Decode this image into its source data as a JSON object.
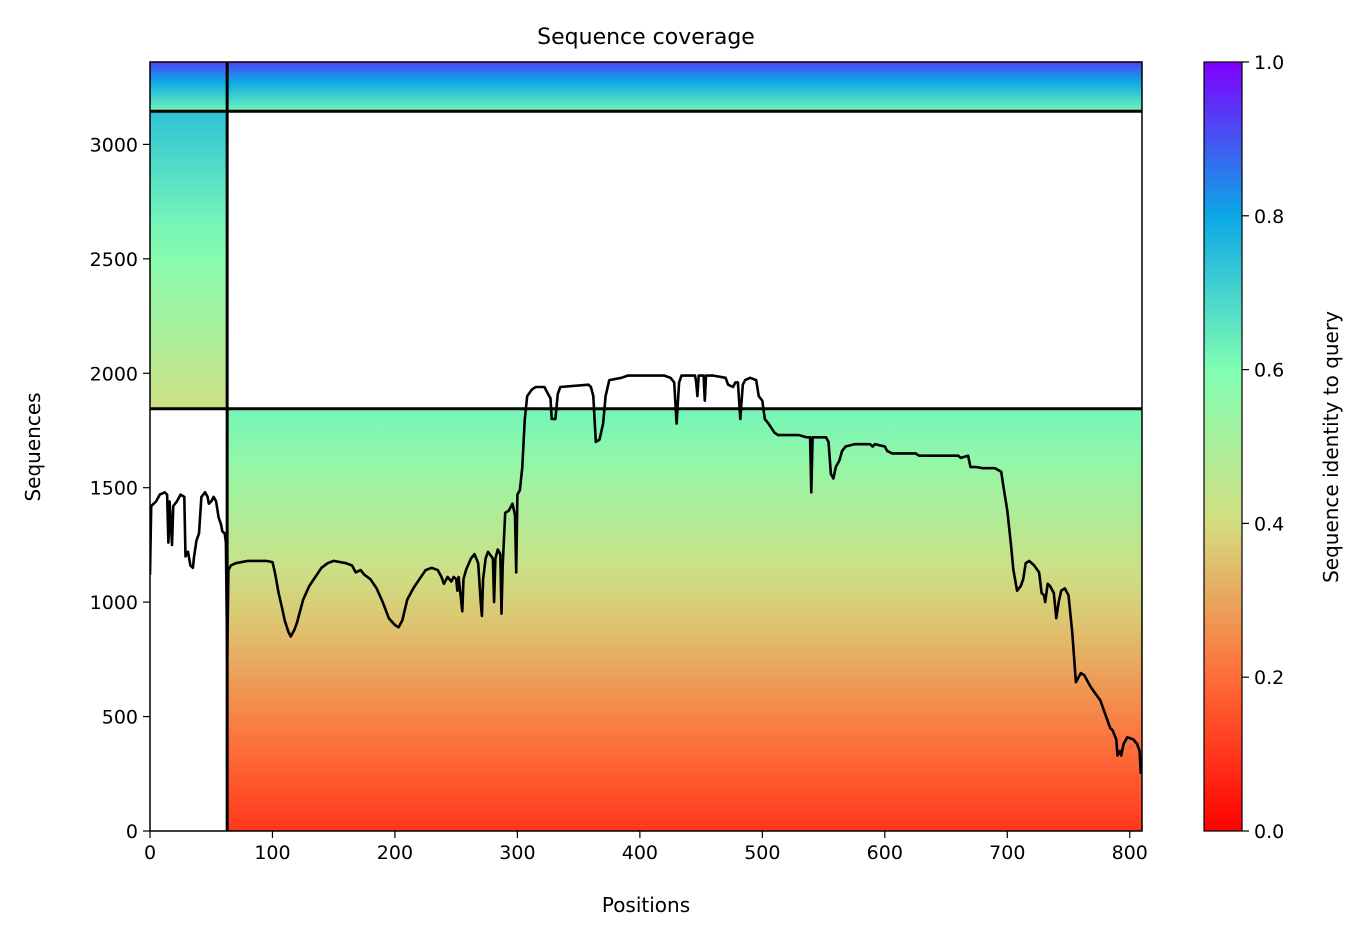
{
  "chart_data": {
    "type": "heatmap",
    "title": "Sequence coverage",
    "xlabel": "Positions",
    "ylabel": "Sequences",
    "xlim": [
      0,
      810
    ],
    "ylim": [
      0,
      3360
    ],
    "xticks": [
      0,
      100,
      200,
      300,
      400,
      500,
      600,
      700,
      800
    ],
    "yticks": [
      0,
      500,
      1000,
      1500,
      2000,
      2500,
      3000
    ],
    "grid": false,
    "legend": "none",
    "colorbar": {
      "label": "Sequence identity to query",
      "colormap": "rainbow_r",
      "range": [
        0,
        1
      ],
      "ticks": [
        0.0,
        0.2,
        0.4,
        0.6,
        0.8,
        1.0
      ],
      "tick_labels": [
        "0.0",
        "0.2",
        "0.4",
        "0.6",
        "0.8",
        "1.0"
      ],
      "stops": [
        "#ff0000",
        "#ff6d39",
        "#d4dd80",
        "#80feb3",
        "#0ba8e6",
        "#8000ff"
      ]
    },
    "domain_boundaries": {
      "vertical_positions": [
        63
      ],
      "horizontal_sequences": [
        1845,
        3145
      ]
    },
    "blocks": [
      {
        "x": [
          0,
          63
        ],
        "y": [
          1845,
          3145
        ],
        "identity_bottom": 0.42,
        "identity_top": 0.74
      },
      {
        "x": [
          63,
          810
        ],
        "y": [
          3145,
          3360
        ],
        "identity_bottom": 0.62,
        "identity_top": 0.92
      },
      {
        "x": [
          0,
          63
        ],
        "y": [
          3145,
          3360
        ],
        "identity_bottom": 0.62,
        "identity_top": 0.92
      },
      {
        "x": [
          63,
          810
        ],
        "y": [
          0,
          1845
        ],
        "identity_bottom": 0.1,
        "identity_top": 0.62
      }
    ],
    "coverage_line": {
      "name": "coverage",
      "color": "#000000",
      "points": [
        [
          0,
          1120
        ],
        [
          1,
          1420
        ],
        [
          5,
          1440
        ],
        [
          8,
          1470
        ],
        [
          12,
          1480
        ],
        [
          14,
          1470
        ],
        [
          15,
          1260
        ],
        [
          16,
          1440
        ],
        [
          18,
          1250
        ],
        [
          19,
          1420
        ],
        [
          22,
          1440
        ],
        [
          25,
          1470
        ],
        [
          28,
          1460
        ],
        [
          29,
          1200
        ],
        [
          31,
          1220
        ],
        [
          33,
          1160
        ],
        [
          35,
          1150
        ],
        [
          36,
          1200
        ],
        [
          38,
          1270
        ],
        [
          40,
          1300
        ],
        [
          42,
          1460
        ],
        [
          45,
          1480
        ],
        [
          47,
          1460
        ],
        [
          48,
          1430
        ],
        [
          50,
          1440
        ],
        [
          52,
          1460
        ],
        [
          54,
          1440
        ],
        [
          56,
          1370
        ],
        [
          58,
          1340
        ],
        [
          59,
          1310
        ],
        [
          61,
          1300
        ],
        [
          62,
          1260
        ],
        [
          63,
          750
        ],
        [
          64,
          1140
        ],
        [
          66,
          1160
        ],
        [
          70,
          1170
        ],
        [
          80,
          1180
        ],
        [
          95,
          1180
        ],
        [
          100,
          1175
        ],
        [
          102,
          1130
        ],
        [
          105,
          1040
        ],
        [
          108,
          970
        ],
        [
          110,
          920
        ],
        [
          113,
          870
        ],
        [
          115,
          850
        ],
        [
          118,
          880
        ],
        [
          120,
          910
        ],
        [
          125,
          1010
        ],
        [
          130,
          1070
        ],
        [
          135,
          1110
        ],
        [
          140,
          1150
        ],
        [
          145,
          1170
        ],
        [
          150,
          1180
        ],
        [
          160,
          1170
        ],
        [
          165,
          1160
        ],
        [
          168,
          1130
        ],
        [
          172,
          1140
        ],
        [
          175,
          1120
        ],
        [
          180,
          1100
        ],
        [
          185,
          1060
        ],
        [
          190,
          1000
        ],
        [
          195,
          930
        ],
        [
          200,
          900
        ],
        [
          203,
          890
        ],
        [
          206,
          920
        ],
        [
          210,
          1010
        ],
        [
          215,
          1060
        ],
        [
          220,
          1100
        ],
        [
          225,
          1140
        ],
        [
          230,
          1150
        ],
        [
          235,
          1140
        ],
        [
          238,
          1110
        ],
        [
          240,
          1080
        ],
        [
          243,
          1110
        ],
        [
          246,
          1090
        ],
        [
          248,
          1110
        ],
        [
          250,
          1100
        ],
        [
          251,
          1050
        ],
        [
          252,
          1110
        ],
        [
          255,
          960
        ],
        [
          256,
          1100
        ],
        [
          258,
          1140
        ],
        [
          262,
          1190
        ],
        [
          265,
          1210
        ],
        [
          268,
          1170
        ],
        [
          270,
          1000
        ],
        [
          271,
          940
        ],
        [
          272,
          1100
        ],
        [
          274,
          1190
        ],
        [
          276,
          1220
        ],
        [
          280,
          1190
        ],
        [
          281,
          1000
        ],
        [
          282,
          1190
        ],
        [
          284,
          1230
        ],
        [
          286,
          1210
        ],
        [
          287,
          950
        ],
        [
          288,
          1160
        ],
        [
          290,
          1390
        ],
        [
          293,
          1400
        ],
        [
          296,
          1430
        ],
        [
          298,
          1380
        ],
        [
          299,
          1130
        ],
        [
          300,
          1470
        ],
        [
          302,
          1490
        ],
        [
          304,
          1590
        ],
        [
          306,
          1800
        ],
        [
          308,
          1900
        ],
        [
          312,
          1930
        ],
        [
          315,
          1940
        ],
        [
          322,
          1940
        ],
        [
          325,
          1910
        ],
        [
          327,
          1890
        ],
        [
          328,
          1800
        ],
        [
          331,
          1800
        ],
        [
          333,
          1910
        ],
        [
          335,
          1940
        ],
        [
          358,
          1950
        ],
        [
          360,
          1940
        ],
        [
          362,
          1900
        ],
        [
          364,
          1700
        ],
        [
          367,
          1710
        ],
        [
          370,
          1780
        ],
        [
          372,
          1900
        ],
        [
          375,
          1970
        ],
        [
          385,
          1980
        ],
        [
          390,
          1990
        ],
        [
          420,
          1990
        ],
        [
          425,
          1980
        ],
        [
          428,
          1960
        ],
        [
          430,
          1780
        ],
        [
          432,
          1960
        ],
        [
          434,
          1990
        ],
        [
          445,
          1990
        ],
        [
          446,
          1960
        ],
        [
          447,
          1900
        ],
        [
          448,
          1990
        ],
        [
          452,
          1990
        ],
        [
          453,
          1880
        ],
        [
          454,
          1990
        ],
        [
          460,
          1990
        ],
        [
          470,
          1980
        ],
        [
          472,
          1950
        ],
        [
          476,
          1940
        ],
        [
          478,
          1960
        ],
        [
          480,
          1960
        ],
        [
          482,
          1800
        ],
        [
          484,
          1950
        ],
        [
          486,
          1970
        ],
        [
          490,
          1980
        ],
        [
          495,
          1970
        ],
        [
          497,
          1900
        ],
        [
          500,
          1880
        ],
        [
          502,
          1800
        ],
        [
          505,
          1780
        ],
        [
          510,
          1740
        ],
        [
          513,
          1730
        ],
        [
          530,
          1730
        ],
        [
          536,
          1720
        ],
        [
          539,
          1720
        ],
        [
          540,
          1480
        ],
        [
          541,
          1720
        ],
        [
          545,
          1720
        ],
        [
          552,
          1720
        ],
        [
          554,
          1700
        ],
        [
          556,
          1560
        ],
        [
          558,
          1540
        ],
        [
          560,
          1590
        ],
        [
          563,
          1620
        ],
        [
          565,
          1660
        ],
        [
          568,
          1680
        ],
        [
          575,
          1690
        ],
        [
          588,
          1690
        ],
        [
          590,
          1680
        ],
        [
          592,
          1690
        ],
        [
          600,
          1680
        ],
        [
          602,
          1660
        ],
        [
          606,
          1650
        ],
        [
          625,
          1650
        ],
        [
          628,
          1640
        ],
        [
          660,
          1640
        ],
        [
          662,
          1630
        ],
        [
          668,
          1640
        ],
        [
          670,
          1590
        ],
        [
          675,
          1590
        ],
        [
          680,
          1585
        ],
        [
          690,
          1585
        ],
        [
          695,
          1570
        ],
        [
          697,
          1500
        ],
        [
          700,
          1400
        ],
        [
          703,
          1250
        ],
        [
          705,
          1140
        ],
        [
          708,
          1050
        ],
        [
          711,
          1070
        ],
        [
          713,
          1100
        ],
        [
          715,
          1170
        ],
        [
          718,
          1180
        ],
        [
          722,
          1160
        ],
        [
          726,
          1130
        ],
        [
          728,
          1040
        ],
        [
          730,
          1030
        ],
        [
          731,
          1000
        ],
        [
          733,
          1080
        ],
        [
          735,
          1070
        ],
        [
          738,
          1040
        ],
        [
          740,
          930
        ],
        [
          742,
          1000
        ],
        [
          744,
          1050
        ],
        [
          747,
          1060
        ],
        [
          750,
          1030
        ],
        [
          753,
          870
        ],
        [
          756,
          650
        ],
        [
          760,
          690
        ],
        [
          763,
          680
        ],
        [
          766,
          650
        ],
        [
          768,
          630
        ],
        [
          772,
          600
        ],
        [
          776,
          570
        ],
        [
          780,
          510
        ],
        [
          784,
          450
        ],
        [
          786,
          440
        ],
        [
          789,
          400
        ],
        [
          790,
          330
        ],
        [
          792,
          350
        ],
        [
          793,
          330
        ],
        [
          795,
          380
        ],
        [
          798,
          410
        ],
        [
          803,
          400
        ],
        [
          806,
          380
        ],
        [
          808,
          350
        ],
        [
          809,
          250
        ]
      ]
    }
  }
}
